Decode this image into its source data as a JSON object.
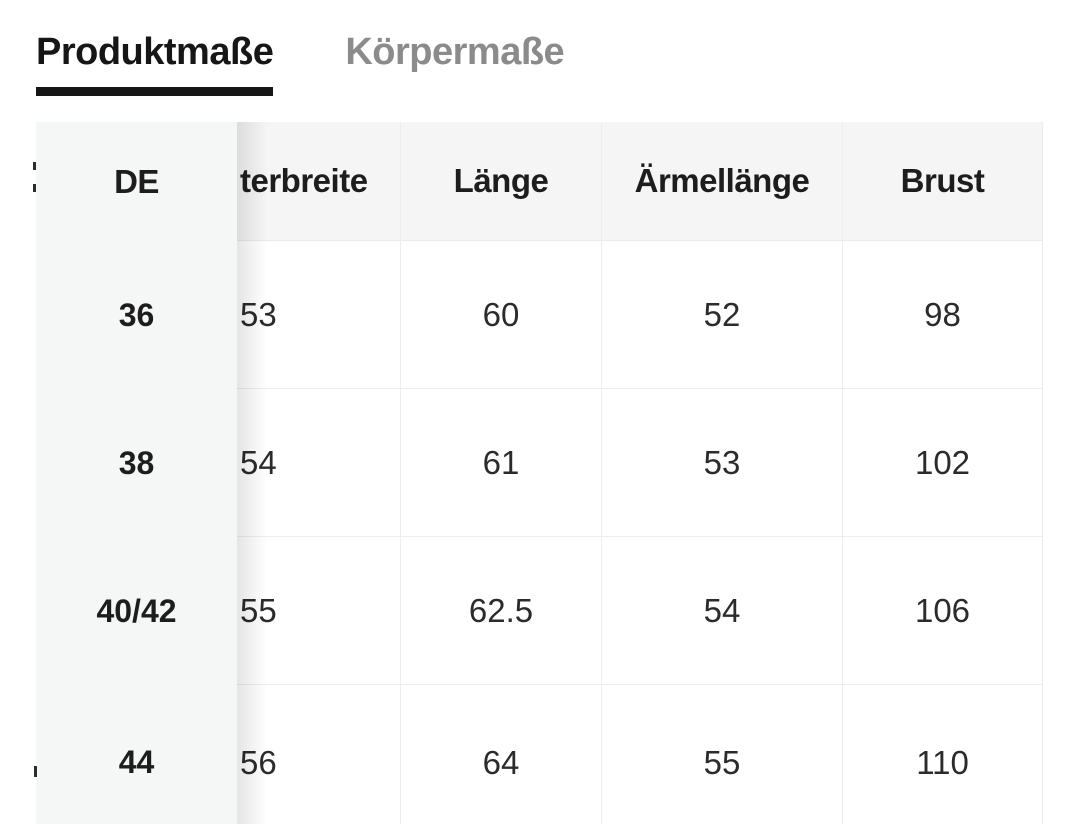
{
  "tabs": [
    {
      "label": "Produktmaße",
      "active": true
    },
    {
      "label": "Körpermaße",
      "active": false
    }
  ],
  "table": {
    "columns": [
      {
        "label": "DE",
        "sticky": true,
        "clipped": false
      },
      {
        "label": "terbreite",
        "sticky": false,
        "clipped": true
      },
      {
        "label": "Länge",
        "sticky": false,
        "clipped": false
      },
      {
        "label": "Ärmellänge",
        "sticky": false,
        "clipped": false
      },
      {
        "label": "Brust",
        "sticky": false,
        "clipped": false
      }
    ],
    "rows": [
      {
        "cells": [
          "36",
          "53",
          "60",
          "52",
          "98"
        ]
      },
      {
        "cells": [
          "38",
          "54",
          "61",
          "53",
          "102"
        ]
      },
      {
        "cells": [
          "40/42",
          "55",
          "62.5",
          "54",
          "106"
        ]
      },
      {
        "cells": [
          "44",
          "56",
          "64",
          "55",
          "110"
        ]
      }
    ]
  },
  "colors": {
    "active_tab_text": "#161616",
    "tab_underline": "#161616",
    "inactive_tab_text": "#8b8b8b",
    "header_bg": "#f5f5f6",
    "sticky_column_bg": "#f5f6f6",
    "cell_text": "#2b2b2b",
    "row_border": "#ededed",
    "page_bg": "#ffffff"
  }
}
